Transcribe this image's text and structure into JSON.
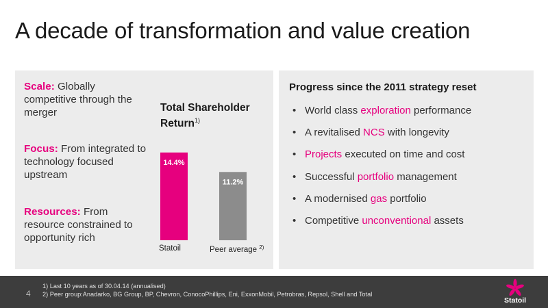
{
  "title": "A decade of transformation and value creation",
  "left_panel": {
    "points": [
      {
        "keyword": "Scale:",
        "text": " Globally competitive through the merger"
      },
      {
        "keyword": "Focus:",
        "text": " From integrated to technology focused upstream"
      },
      {
        "keyword": "Resources:",
        "text": " From resource constrained to opportunity rich"
      }
    ]
  },
  "chart_data": {
    "type": "bar",
    "title": "Total Shareholder Return",
    "title_note": "1)",
    "categories": [
      "Statoil",
      "Peer average"
    ],
    "category_notes": [
      "",
      "2)"
    ],
    "values": [
      14.4,
      11.2
    ],
    "value_labels": [
      "14.4%",
      "11.2%"
    ],
    "colors": [
      "#e6007e",
      "#8c8c8c"
    ],
    "ylim": [
      0,
      15.5
    ],
    "grid": false,
    "xlabel": "",
    "ylabel": ""
  },
  "right_panel": {
    "title": "Progress since the 2011 strategy reset",
    "bullet_char": "•",
    "items": [
      {
        "before": "World class ",
        "highlight": "exploration",
        "after": " performance"
      },
      {
        "before": "A revitalised ",
        "highlight": "NCS",
        "after": " with longevity"
      },
      {
        "before": "",
        "highlight": "Projects",
        "after": " executed on time and cost"
      },
      {
        "before": "Successful ",
        "highlight": "portfolio",
        "after": " management"
      },
      {
        "before": "A modernised ",
        "highlight": "gas",
        "after": " portfolio"
      },
      {
        "before": "Competitive ",
        "highlight": "unconventional",
        "after": " assets"
      }
    ]
  },
  "footer": {
    "page_number": "4",
    "notes": [
      "1)  Last 10 years as of 30.04.14 (annualised)",
      "2)  Peer group:Anadarko, BG Group, BP, Chevron, ConocoPhillips, Eni, ExxonMobil, Petrobras, Repsol, Shell and Total"
    ],
    "logo_text": "Statoil"
  },
  "colors": {
    "accent": "#e6007e",
    "panel_bg": "#ececec",
    "footer_bg": "#3d3d3d"
  }
}
